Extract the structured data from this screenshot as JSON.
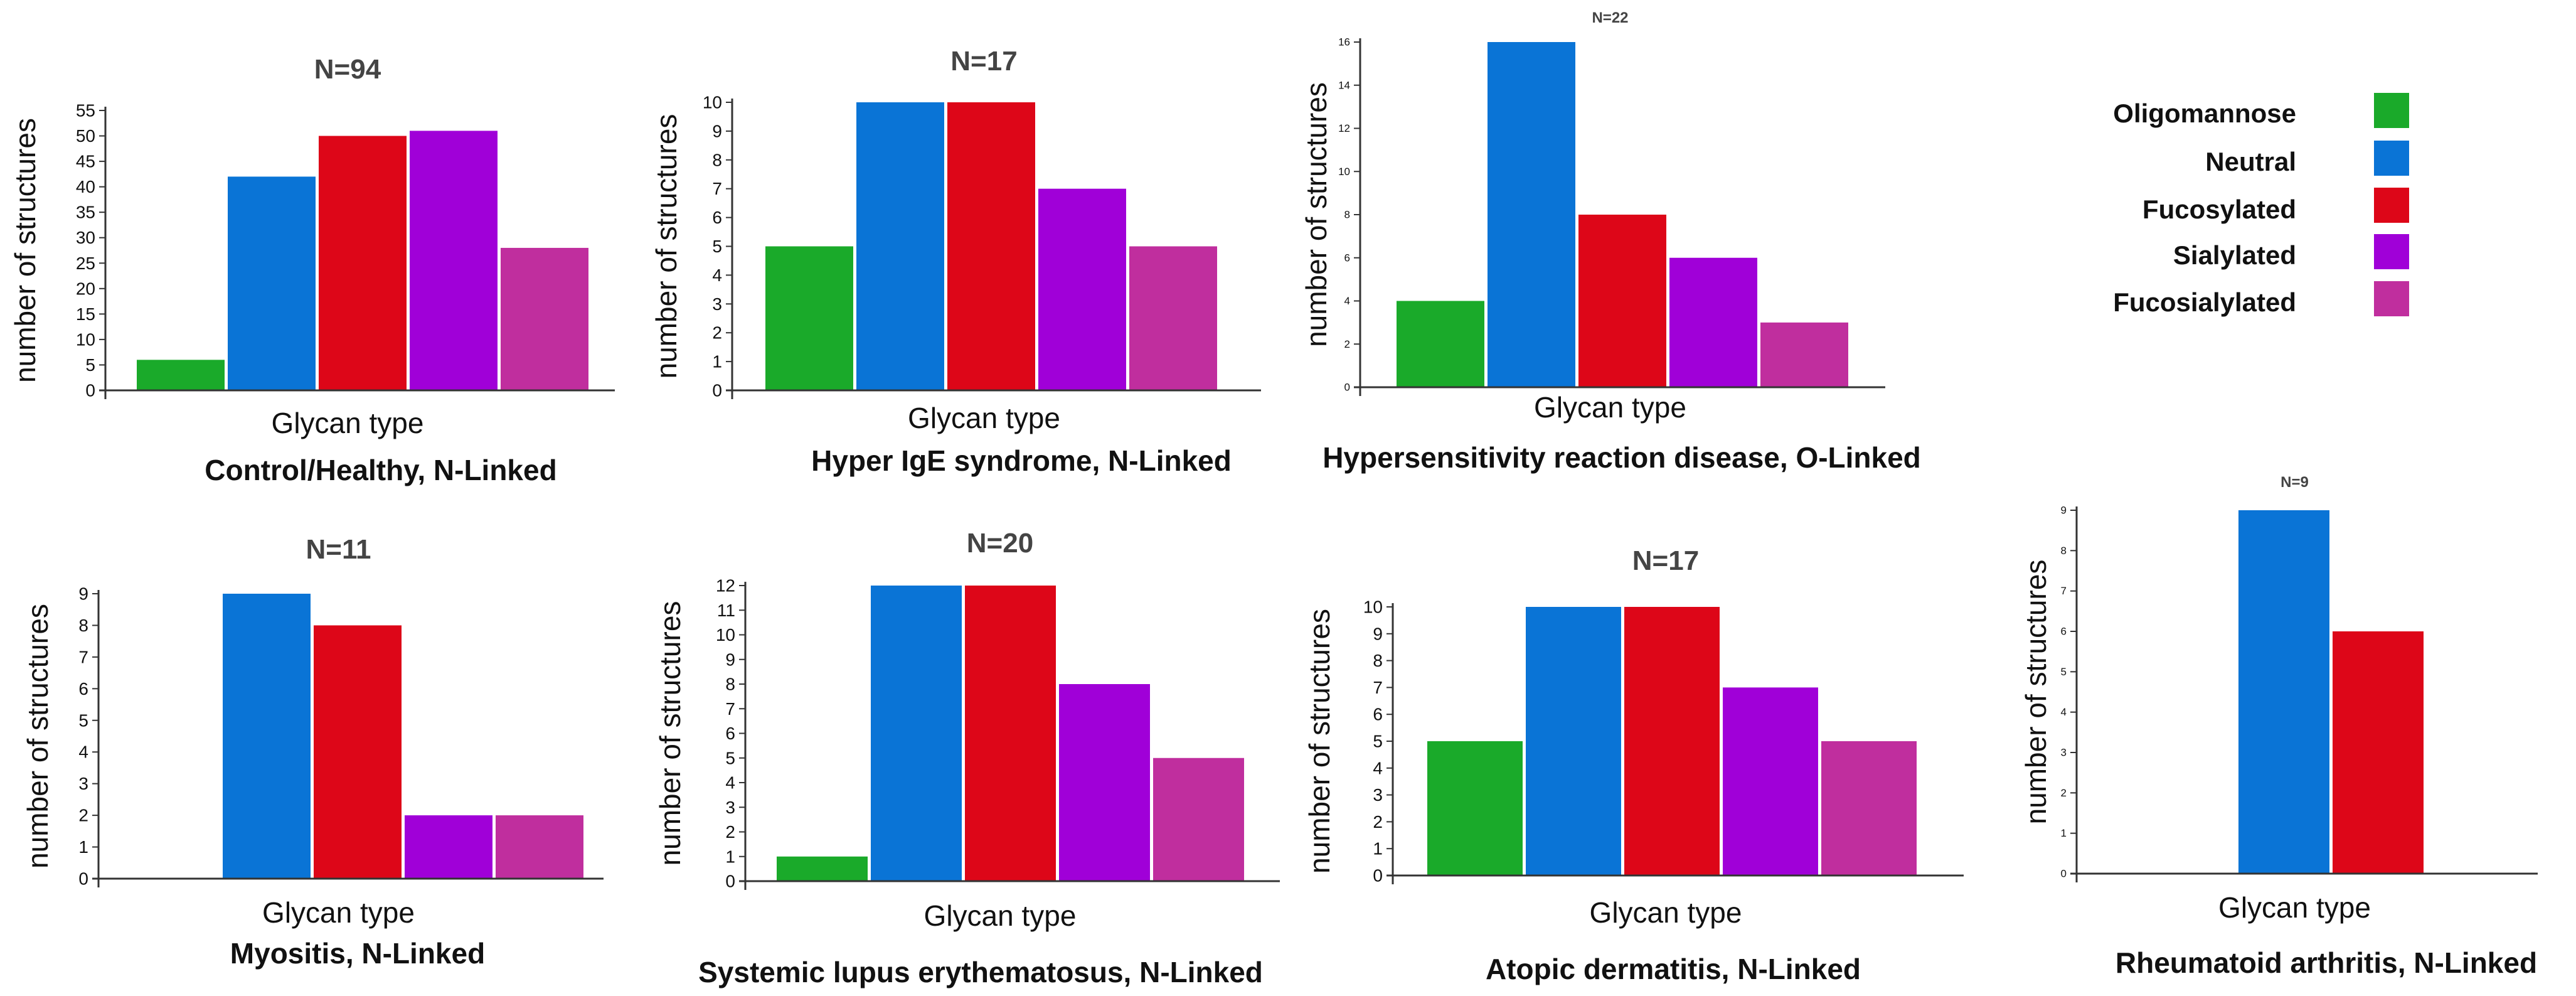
{
  "legend": {
    "items": [
      {
        "label": "Oligomannose",
        "color": "#1aaa2a"
      },
      {
        "label": "Neutral",
        "color": "#0a74d6"
      },
      {
        "label": "Fucosylated",
        "color": "#dd0618"
      },
      {
        "label": "Sialylated",
        "color": "#a000d8"
      },
      {
        "label": "Fucosialylated",
        "color": "#c02e9e"
      }
    ]
  },
  "chart_data": [
    {
      "type": "bar",
      "title": "N=94",
      "caption": "Control/Healthy, N-Linked",
      "xlabel": "Glycan type",
      "ylabel": "number of structures",
      "categories": [
        "Oligomannose",
        "Neutral",
        "Fucosylated",
        "Sialylated",
        "Fucosialylated"
      ],
      "values": [
        6,
        42,
        50,
        51,
        28
      ],
      "ylim": [
        0,
        55
      ],
      "yticks": [
        0,
        5,
        10,
        15,
        20,
        25,
        30,
        35,
        40,
        45,
        50,
        55
      ]
    },
    {
      "type": "bar",
      "title": "N=17",
      "caption": "Hyper IgE syndrome, N-Linked",
      "xlabel": "Glycan type",
      "ylabel": "number of structures",
      "categories": [
        "Oligomannose",
        "Neutral",
        "Fucosylated",
        "Sialylated",
        "Fucosialylated"
      ],
      "values": [
        5,
        10,
        10,
        7,
        5
      ],
      "ylim": [
        0,
        10
      ],
      "yticks": [
        0,
        1,
        2,
        3,
        4,
        5,
        6,
        7,
        8,
        9,
        10
      ]
    },
    {
      "type": "bar",
      "title": "N=22",
      "caption": "Hypersensitivity reaction disease, O-Linked",
      "xlabel": "Glycan type",
      "ylabel": "number of structures",
      "categories": [
        "Oligomannose",
        "Neutral",
        "Fucosylated",
        "Sialylated",
        "Fucosialylated"
      ],
      "values": [
        4,
        16,
        8,
        6,
        3
      ],
      "ylim": [
        0,
        16
      ],
      "yticks": [
        0,
        2,
        4,
        6,
        8,
        10,
        12,
        14,
        16
      ]
    },
    {
      "type": "bar",
      "title": "N=11",
      "caption": "Myositis, N-Linked",
      "xlabel": "Glycan type",
      "ylabel": "number of structures",
      "categories": [
        "Oligomannose",
        "Neutral",
        "Fucosylated",
        "Sialylated",
        "Fucosialylated"
      ],
      "values": [
        0,
        9,
        8,
        2,
        2
      ],
      "ylim": [
        0,
        9
      ],
      "yticks": [
        0,
        1,
        2,
        3,
        4,
        5,
        6,
        7,
        8,
        9
      ]
    },
    {
      "type": "bar",
      "title": "N=20",
      "caption": "Systemic lupus erythematosus, N-Linked",
      "xlabel": "Glycan type",
      "ylabel": "number of structures",
      "categories": [
        "Oligomannose",
        "Neutral",
        "Fucosylated",
        "Sialylated",
        "Fucosialylated"
      ],
      "values": [
        1,
        12,
        12,
        8,
        5
      ],
      "ylim": [
        0,
        12
      ],
      "yticks": [
        0,
        1,
        2,
        3,
        4,
        5,
        6,
        7,
        8,
        9,
        10,
        11,
        12
      ]
    },
    {
      "type": "bar",
      "title": "N=17",
      "caption": "Atopic dermatitis,  N-Linked",
      "xlabel": "Glycan type",
      "ylabel": "number of structures",
      "categories": [
        "Oligomannose",
        "Neutral",
        "Fucosylated",
        "Sialylated",
        "Fucosialylated"
      ],
      "values": [
        5,
        10,
        10,
        7,
        5
      ],
      "ylim": [
        0,
        10
      ],
      "yticks": [
        0,
        1,
        2,
        3,
        4,
        5,
        6,
        7,
        8,
        9,
        10
      ]
    },
    {
      "type": "bar",
      "title": "N=9",
      "caption": "Rheumatoid arthritis, N-Linked",
      "xlabel": "Glycan type",
      "ylabel": "number of structures",
      "categories": [
        "Oligomannose",
        "Neutral",
        "Fucosylated",
        "Sialylated",
        "Fucosialylated"
      ],
      "values": [
        0,
        9,
        6,
        0,
        0
      ],
      "ylim": [
        0,
        9
      ],
      "yticks": [
        0,
        1,
        2,
        3,
        4,
        5,
        6,
        7,
        8,
        9
      ]
    }
  ]
}
